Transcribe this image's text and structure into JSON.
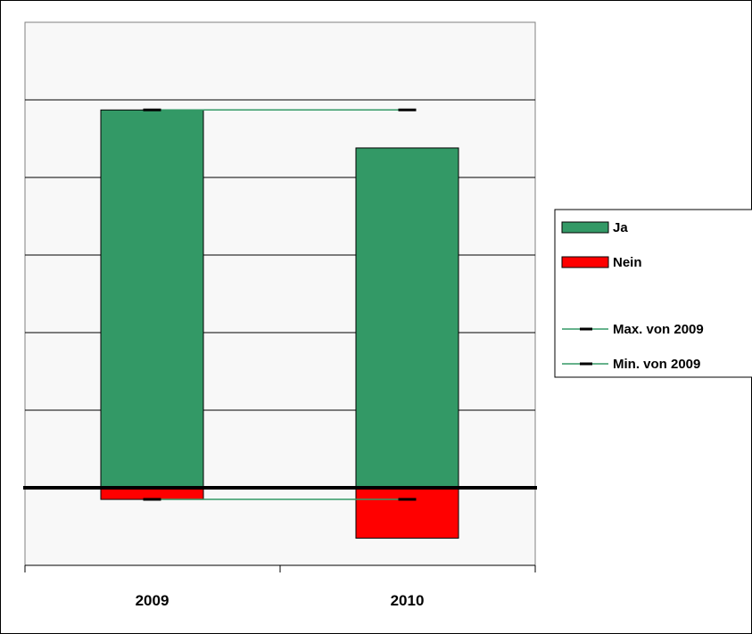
{
  "chart_data": {
    "type": "bar",
    "stacked": true,
    "categories": [
      "2009",
      "2010"
    ],
    "series": [
      {
        "name": "Ja",
        "values": [
          4.87,
          4.38
        ]
      },
      {
        "name": "Nein",
        "values": [
          -0.15,
          -0.65
        ]
      },
      {
        "name": "Max. von 2009",
        "type": "line",
        "values": [
          4.87,
          4.87
        ]
      },
      {
        "name": "Min. von 2009",
        "type": "line",
        "values": [
          -0.15,
          -0.15
        ]
      }
    ],
    "ylim": [
      -1,
      6
    ],
    "grid": true,
    "legend": "right",
    "title": "",
    "xlabel": "",
    "ylabel": ""
  },
  "colors": {
    "ja": "#339966",
    "nein": "#ff0000",
    "ref_line": "#339966",
    "ref_marker": "#000000",
    "plot_bg": "#f8f8f8",
    "grid": "#000000"
  },
  "legend": {
    "items": [
      {
        "label": "Ja",
        "kind": "box",
        "color": "#339966"
      },
      {
        "label": "Nein",
        "kind": "box",
        "color": "#ff0000"
      },
      {
        "label": "Max. von 2009",
        "kind": "line"
      },
      {
        "label": "Min. von 2009",
        "kind": "line"
      }
    ]
  }
}
